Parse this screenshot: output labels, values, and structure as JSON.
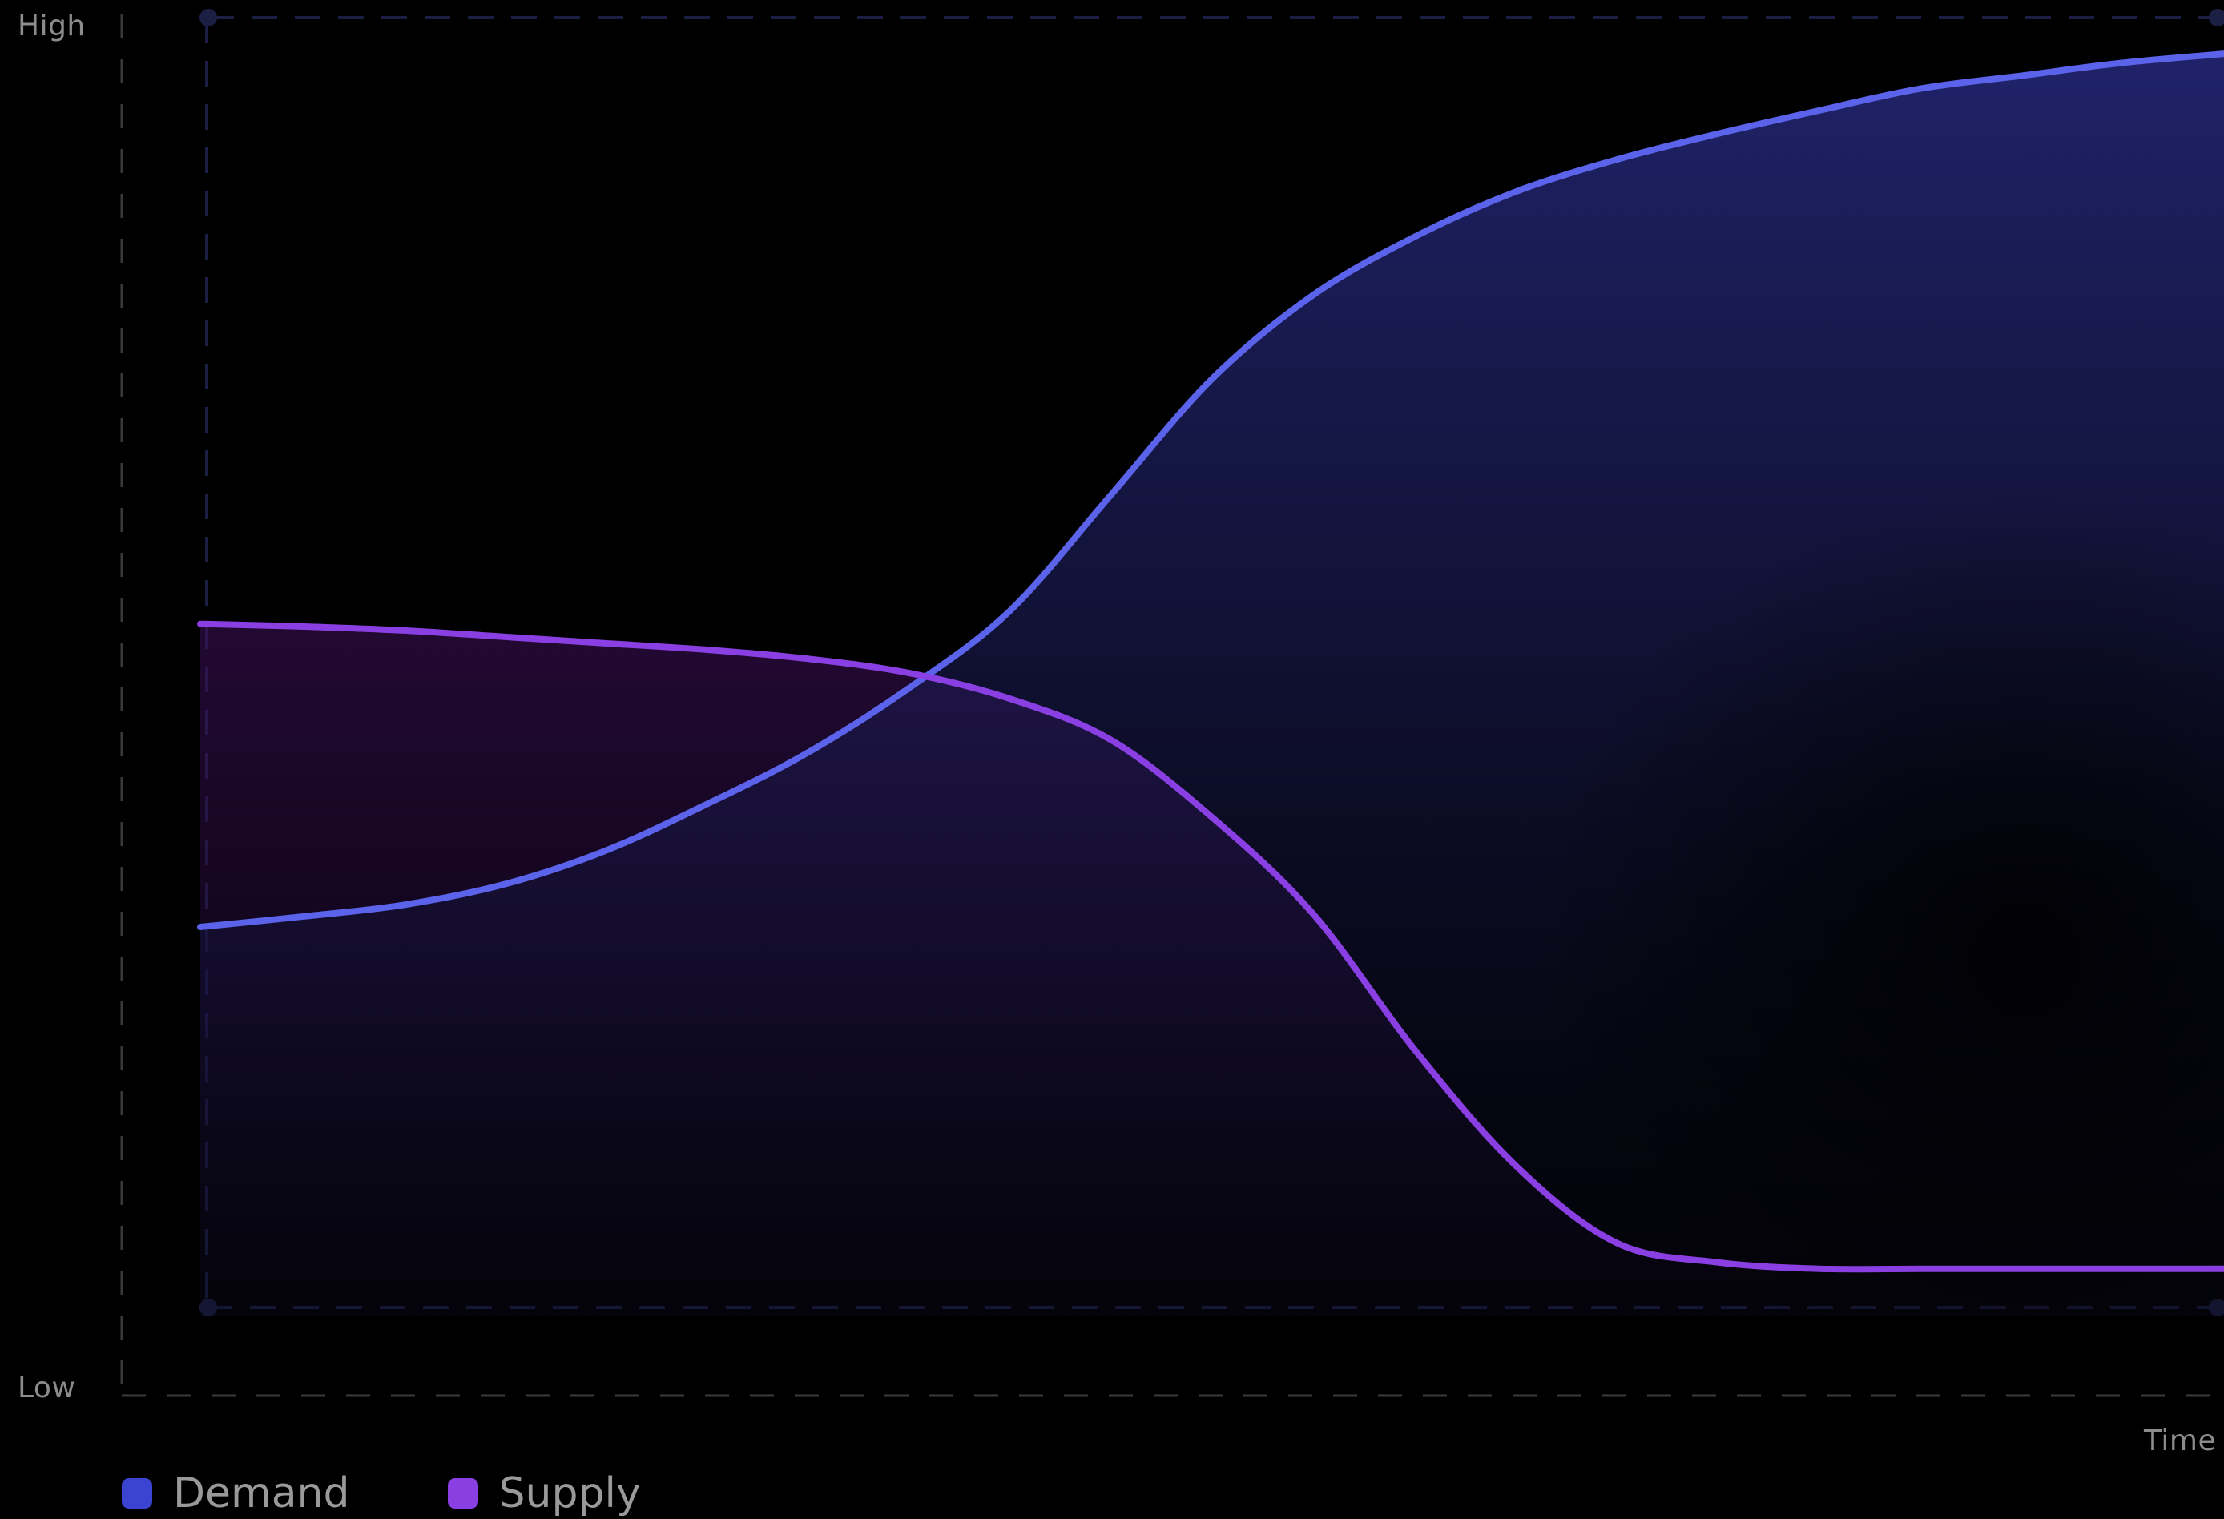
{
  "chart_data": {
    "type": "area",
    "title": "",
    "xlabel": "Time",
    "ylabel": "",
    "y_axis_top_label": "High",
    "y_axis_bottom_label": "Low",
    "x": [
      0,
      5,
      10,
      15,
      20,
      25,
      30,
      35,
      40,
      45,
      50,
      55,
      60,
      65,
      70,
      75,
      80,
      85,
      90,
      95,
      100
    ],
    "xlim": [
      0,
      100
    ],
    "ylim": [
      0,
      100
    ],
    "grid": false,
    "legend_position": "bottom-left",
    "series": [
      {
        "name": "Demand",
        "color": "#5a63ea",
        "swatch_color": "#3b44d1",
        "values": [
          29.5,
          30.3,
          31.2,
          32.8,
          35.4,
          39.0,
          43.0,
          48.0,
          54.0,
          63.0,
          72.0,
          78.5,
          83.0,
          86.5,
          89.0,
          91.0,
          92.8,
          94.5,
          95.5,
          96.5,
          97.2
        ]
      },
      {
        "name": "Supply",
        "color": "#8a3fe2",
        "swatch_color": "#8a3fe2",
        "values": [
          53.0,
          52.8,
          52.5,
          52.0,
          51.5,
          51.0,
          50.3,
          49.2,
          47.2,
          44.0,
          38.0,
          30.5,
          20.0,
          11.0,
          5.0,
          3.5,
          3.0,
          3.0,
          3.0,
          3.0,
          3.0
        ]
      }
    ]
  }
}
